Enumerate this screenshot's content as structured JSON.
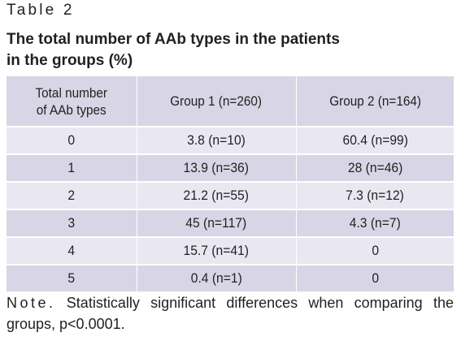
{
  "table_label": "Table 2",
  "title": {
    "line1": "The total number of AAb types in the patients",
    "line2": "in the groups (%)"
  },
  "table": {
    "headers": {
      "col1_line1": "Total number",
      "col1_line2": "of AAb types",
      "col2": "Group 1 (n=260)",
      "col3": "Group 2 (n=164)"
    },
    "rows": [
      {
        "count": "0",
        "group1": "3.8 (n=10)",
        "group2": "60.4 (n=99)"
      },
      {
        "count": "1",
        "group1": "13.9 (n=36)",
        "group2": "28 (n=46)"
      },
      {
        "count": "2",
        "group1": "21.2 (n=55)",
        "group2": "7.3 (n=12)"
      },
      {
        "count": "3",
        "group1": "45 (n=117)",
        "group2": "4.3 (n=7)"
      },
      {
        "count": "4",
        "group1": "15.7 (n=41)",
        "group2": "0"
      },
      {
        "count": "5",
        "group1": "0.4 (n=1)",
        "group2": "0"
      }
    ]
  },
  "note": {
    "lead": "Note.",
    "text": "Statistically significant differences when comparing the groups, p<0.0001."
  },
  "colors": {
    "header_bg": "#d8d5e6",
    "row_light": "#e9e8f2",
    "row_dark": "#d8d5e6",
    "text": "#231f20"
  }
}
